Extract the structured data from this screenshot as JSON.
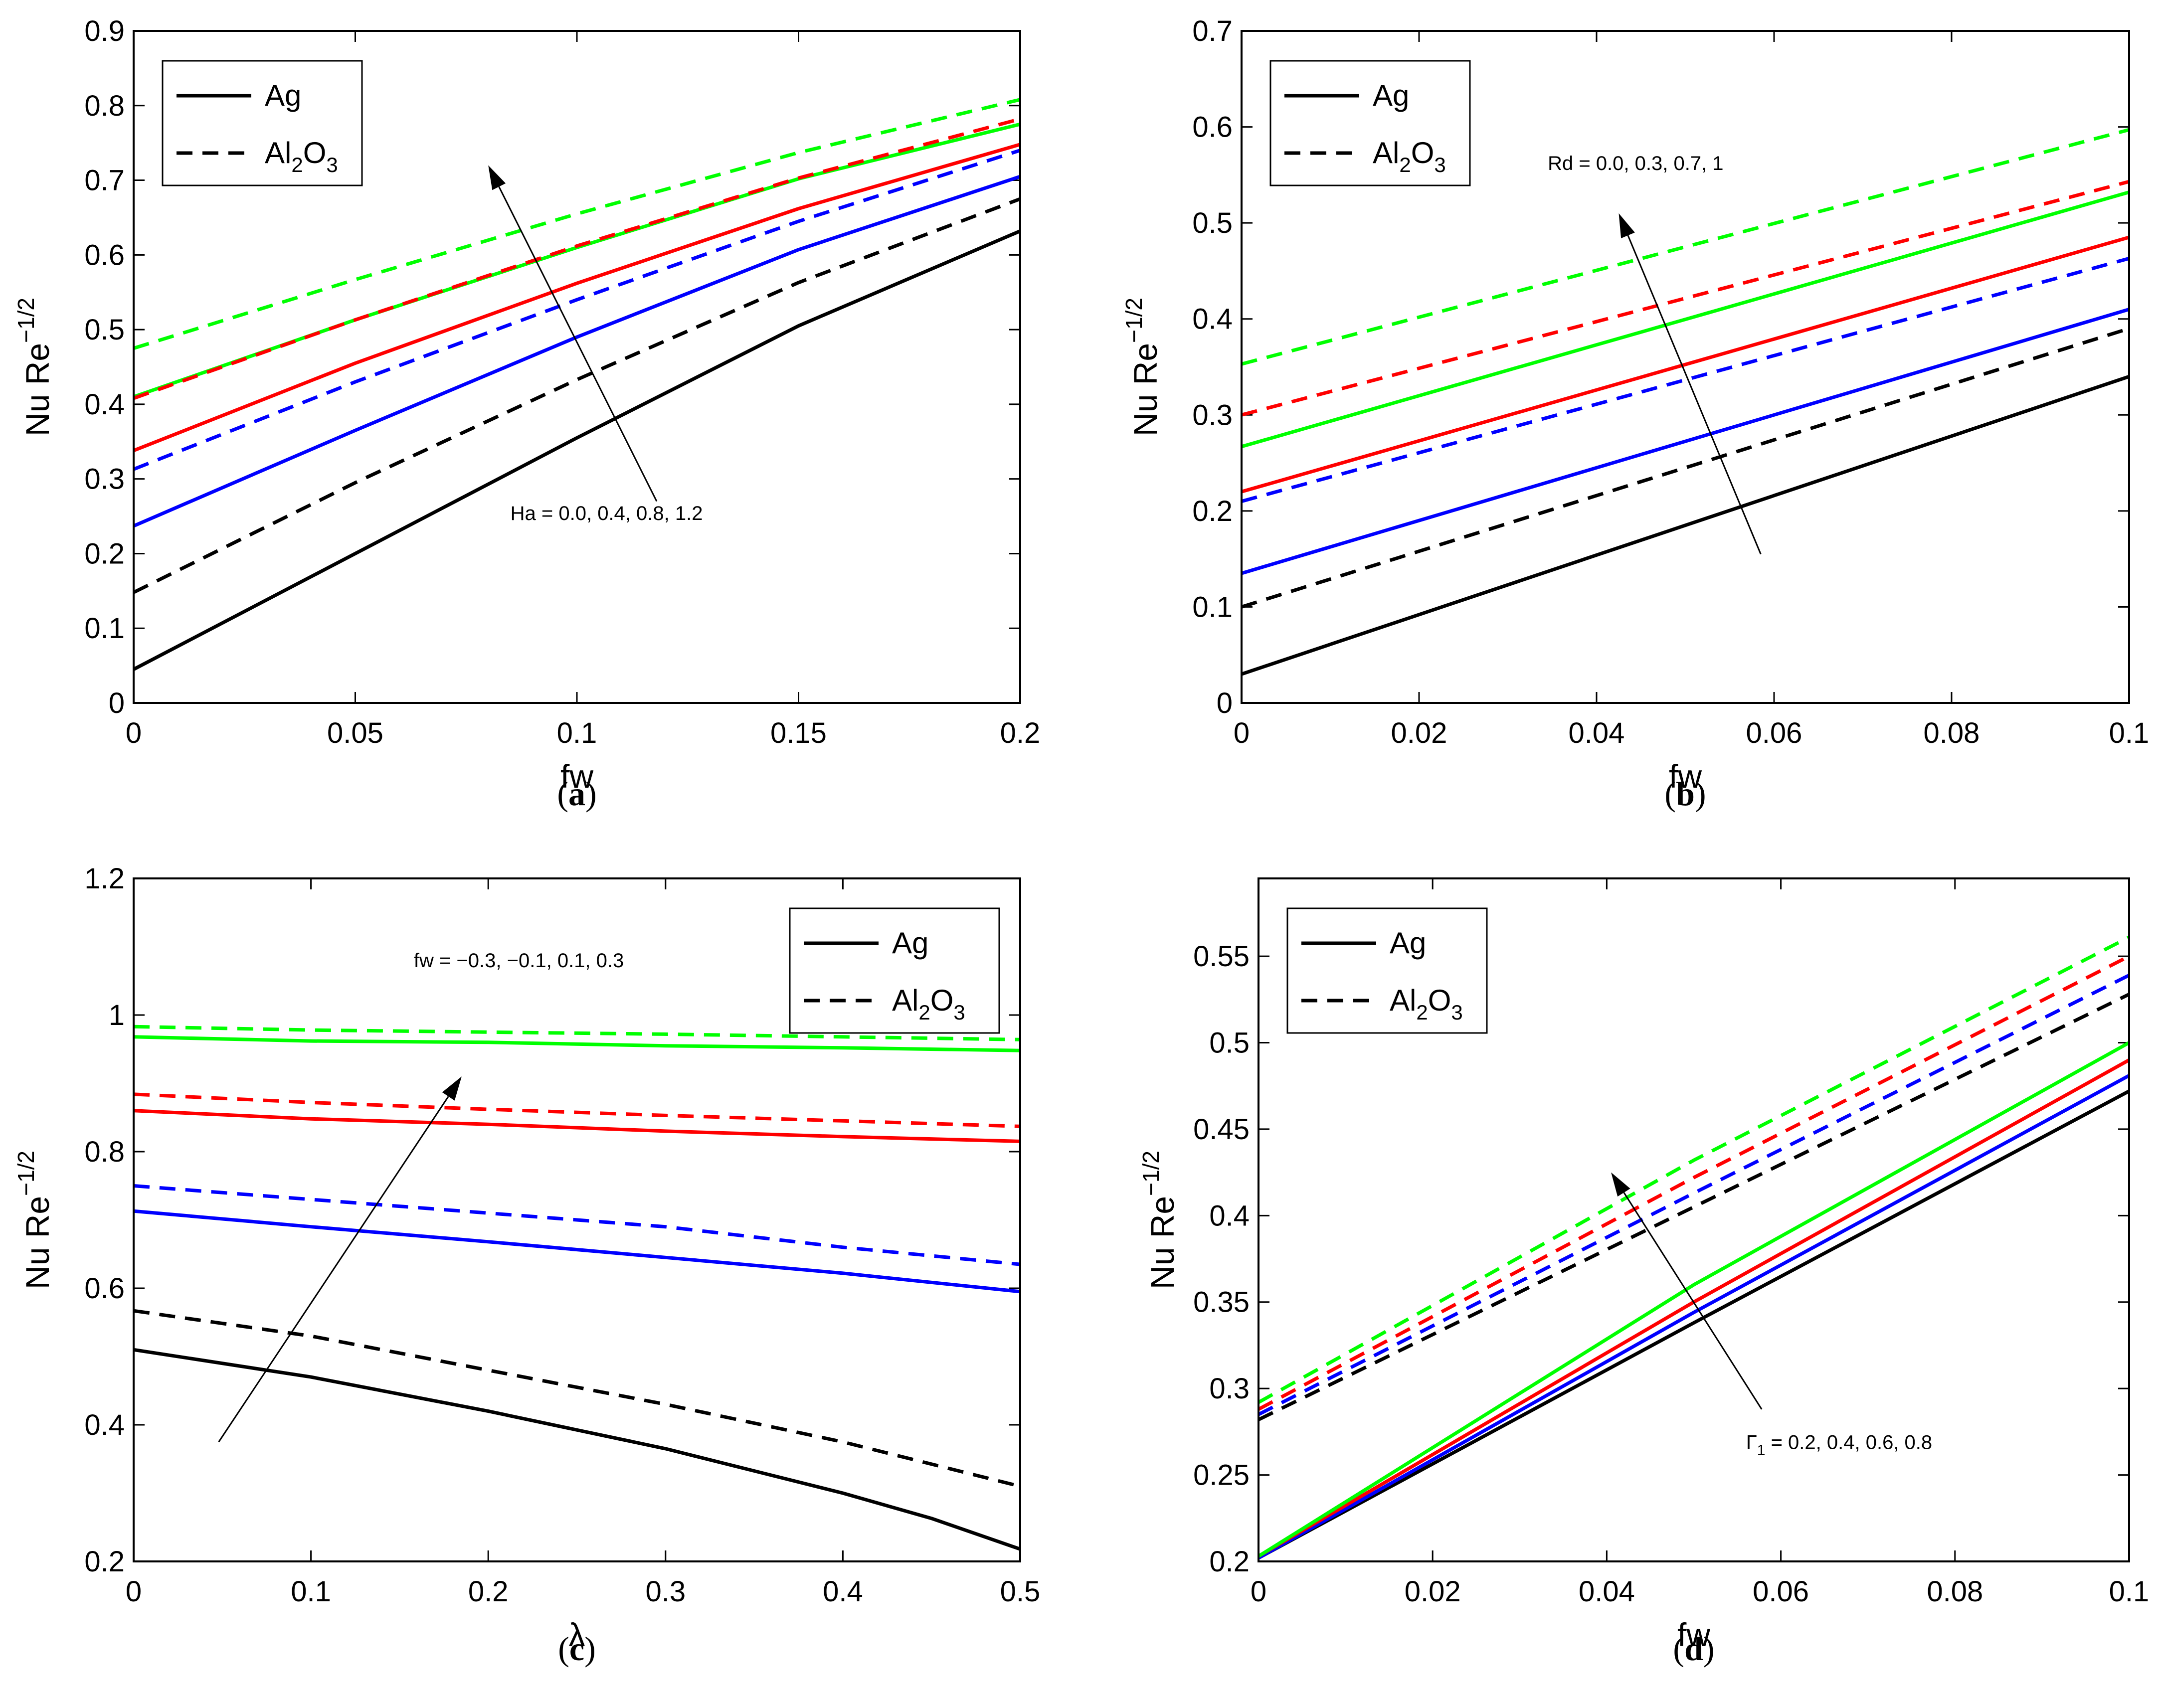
{
  "chart_data": [
    {
      "type": "line",
      "panel": "a",
      "caption_letter": "a",
      "xlabel": "fw",
      "ylabel_base": "Nu Re",
      "ylabel_exp": "−1/2",
      "xlim": [
        0,
        0.2
      ],
      "ylim": [
        0,
        0.9
      ],
      "xticks": [
        0,
        0.05,
        0.1,
        0.15,
        0.2
      ],
      "xtick_labels": [
        "0",
        "0.05",
        "0.1",
        "0.15",
        "0.2"
      ],
      "yticks": [
        0,
        0.1,
        0.2,
        0.3,
        0.4,
        0.5,
        0.6,
        0.7,
        0.8,
        0.9
      ],
      "ytick_labels": [
        "0",
        "0.1",
        "0.2",
        "0.3",
        "0.4",
        "0.5",
        "0.6",
        "0.7",
        "0.8",
        "0.9"
      ],
      "legend": [
        {
          "label": "Ag",
          "sub": "",
          "style": "solid"
        },
        {
          "label": "Al",
          "sub": "2",
          "label2": "O",
          "sub2": "3",
          "style": "dashed"
        }
      ],
      "legend_position": "top-left",
      "annotation": {
        "text": "Ha = 0.0, 0.4, 0.8, 1.2",
        "arrow_from": [
          0.118,
          0.27
        ],
        "arrow_to": [
          0.08,
          0.72
        ],
        "text_pos": [
          0.085,
          0.245
        ]
      },
      "series": [
        {
          "name": "Ag Ha=0.0",
          "color": "#000000",
          "style": "solid",
          "x": [
            0,
            0.05,
            0.1,
            0.15,
            0.2
          ],
          "y": [
            0.045,
            0.2,
            0.355,
            0.505,
            0.632
          ]
        },
        {
          "name": "Ag Ha=0.4",
          "color": "#0000ff",
          "style": "solid",
          "x": [
            0,
            0.05,
            0.1,
            0.15,
            0.2
          ],
          "y": [
            0.237,
            0.365,
            0.49,
            0.607,
            0.705
          ]
        },
        {
          "name": "Ag Ha=0.8",
          "color": "#ff0000",
          "style": "solid",
          "x": [
            0,
            0.05,
            0.1,
            0.15,
            0.2
          ],
          "y": [
            0.338,
            0.455,
            0.562,
            0.662,
            0.748
          ]
        },
        {
          "name": "Ag Ha=1.2",
          "color": "#00ff00",
          "style": "solid",
          "x": [
            0,
            0.05,
            0.1,
            0.15,
            0.2
          ],
          "y": [
            0.41,
            0.513,
            0.61,
            0.702,
            0.775
          ]
        },
        {
          "name": "Al2O3 Ha=0.0",
          "color": "#000000",
          "style": "dashed",
          "x": [
            0,
            0.05,
            0.1,
            0.15,
            0.2
          ],
          "y": [
            0.148,
            0.295,
            0.433,
            0.563,
            0.675
          ]
        },
        {
          "name": "Al2O3 Ha=0.4",
          "color": "#0000ff",
          "style": "dashed",
          "x": [
            0,
            0.05,
            0.1,
            0.15,
            0.2
          ],
          "y": [
            0.313,
            0.43,
            0.54,
            0.645,
            0.74
          ]
        },
        {
          "name": "Al2O3 Ha=0.8",
          "color": "#ff0000",
          "style": "dashed",
          "x": [
            0,
            0.05,
            0.1,
            0.15,
            0.2
          ],
          "y": [
            0.408,
            0.513,
            0.612,
            0.703,
            0.782
          ]
        },
        {
          "name": "Al2O3 Ha=1.2",
          "color": "#00ff00",
          "style": "dashed",
          "x": [
            0,
            0.05,
            0.1,
            0.15,
            0.2
          ],
          "y": [
            0.475,
            0.567,
            0.655,
            0.737,
            0.808
          ]
        }
      ]
    },
    {
      "type": "line",
      "panel": "b",
      "caption_letter": "b",
      "xlabel": "fw",
      "ylabel_base": "Nu Re",
      "ylabel_exp": "−1/2",
      "xlim": [
        0,
        0.1
      ],
      "ylim": [
        0,
        0.7
      ],
      "xticks": [
        0,
        0.02,
        0.04,
        0.06,
        0.08,
        0.1
      ],
      "xtick_labels": [
        "0",
        "0.02",
        "0.04",
        "0.06",
        "0.08",
        "0.1"
      ],
      "yticks": [
        0,
        0.1,
        0.2,
        0.3,
        0.4,
        0.5,
        0.6,
        0.7
      ],
      "ytick_labels": [
        "0",
        "0.1",
        "0.2",
        "0.3",
        "0.4",
        "0.5",
        "0.6",
        "0.7"
      ],
      "legend": [
        {
          "label": "Ag",
          "sub": "",
          "style": "solid"
        },
        {
          "label": "Al",
          "sub": "2",
          "label2": "O",
          "sub2": "3",
          "style": "dashed"
        }
      ],
      "legend_position": "top-left",
      "annotation": {
        "text": "Rd = 0.0, 0.3, 0.7, 1",
        "arrow_from": [
          0.0585,
          0.155
        ],
        "arrow_to": [
          0.0425,
          0.51
        ],
        "text_pos": [
          0.0345,
          0.555
        ]
      },
      "series": [
        {
          "name": "Ag Rd=0.0",
          "color": "#000000",
          "style": "solid",
          "x": [
            0,
            0.1
          ],
          "y": [
            0.03,
            0.34
          ]
        },
        {
          "name": "Ag Rd=0.3",
          "color": "#0000ff",
          "style": "solid",
          "x": [
            0,
            0.1
          ],
          "y": [
            0.135,
            0.41
          ]
        },
        {
          "name": "Ag Rd=0.7",
          "color": "#ff0000",
          "style": "solid",
          "x": [
            0,
            0.1
          ],
          "y": [
            0.22,
            0.485
          ]
        },
        {
          "name": "Ag Rd=1",
          "color": "#00ff00",
          "style": "solid",
          "x": [
            0,
            0.1
          ],
          "y": [
            0.267,
            0.532
          ]
        },
        {
          "name": "Al2O3 Rd=0.0",
          "color": "#000000",
          "style": "dashed",
          "x": [
            0,
            0.1
          ],
          "y": [
            0.1,
            0.39
          ]
        },
        {
          "name": "Al2O3 Rd=0.3",
          "color": "#0000ff",
          "style": "dashed",
          "x": [
            0,
            0.1
          ],
          "y": [
            0.21,
            0.463
          ]
        },
        {
          "name": "Al2O3 Rd=0.7",
          "color": "#ff0000",
          "style": "dashed",
          "x": [
            0,
            0.1
          ],
          "y": [
            0.3,
            0.543
          ]
        },
        {
          "name": "Al2O3 Rd=1",
          "color": "#00ff00",
          "style": "dashed",
          "x": [
            0,
            0.1
          ],
          "y": [
            0.353,
            0.597
          ]
        }
      ]
    },
    {
      "type": "line",
      "panel": "c",
      "caption_letter": "c",
      "xlabel": "λ",
      "ylabel_base": "Nu Re",
      "ylabel_exp": "−1/2",
      "xlim": [
        0,
        0.5
      ],
      "ylim": [
        0.2,
        1.2
      ],
      "xticks": [
        0,
        0.1,
        0.2,
        0.3,
        0.4,
        0.5
      ],
      "xtick_labels": [
        "0",
        "0.1",
        "0.2",
        "0.3",
        "0.4",
        "0.5"
      ],
      "yticks": [
        0.2,
        0.4,
        0.6,
        0.8,
        1.0,
        1.2
      ],
      "ytick_labels": [
        "0.2",
        "0.4",
        "0.6",
        "0.8",
        "1",
        "1.2"
      ],
      "legend": [
        {
          "label": "Ag",
          "sub": "",
          "style": "solid"
        },
        {
          "label": "Al",
          "sub": "2",
          "label2": "O",
          "sub2": "3",
          "style": "dashed"
        }
      ],
      "legend_position": "top-right",
      "annotation": {
        "text": "fw = −0.3, −0.1, 0.1, 0.3",
        "arrow_from": [
          0.048,
          0.375
        ],
        "arrow_to": [
          0.185,
          0.91
        ],
        "text_pos": [
          0.158,
          1.07
        ]
      },
      "series": [
        {
          "name": "Ag fw=-0.3",
          "color": "#000000",
          "style": "solid",
          "x": [
            0,
            0.1,
            0.2,
            0.3,
            0.4,
            0.45,
            0.5
          ],
          "y": [
            0.51,
            0.47,
            0.42,
            0.365,
            0.3,
            0.263,
            0.218
          ]
        },
        {
          "name": "Ag fw=-0.1",
          "color": "#0000ff",
          "style": "solid",
          "x": [
            0,
            0.1,
            0.2,
            0.3,
            0.4,
            0.5
          ],
          "y": [
            0.713,
            0.69,
            0.668,
            0.645,
            0.622,
            0.595
          ]
        },
        {
          "name": "Ag fw=0.1",
          "color": "#ff0000",
          "style": "solid",
          "x": [
            0,
            0.1,
            0.2,
            0.3,
            0.4,
            0.5
          ],
          "y": [
            0.86,
            0.848,
            0.84,
            0.83,
            0.822,
            0.815
          ]
        },
        {
          "name": "Ag fw=0.3",
          "color": "#00ff00",
          "style": "solid",
          "x": [
            0,
            0.1,
            0.2,
            0.3,
            0.4,
            0.5
          ],
          "y": [
            0.968,
            0.962,
            0.96,
            0.955,
            0.952,
            0.948
          ]
        },
        {
          "name": "Al2O3 fw=-0.3",
          "color": "#000000",
          "style": "dashed",
          "x": [
            0,
            0.1,
            0.2,
            0.3,
            0.4,
            0.5
          ],
          "y": [
            0.567,
            0.53,
            0.48,
            0.43,
            0.375,
            0.31
          ]
        },
        {
          "name": "Al2O3 fw=-0.1",
          "color": "#0000ff",
          "style": "dashed",
          "x": [
            0,
            0.1,
            0.2,
            0.3,
            0.4,
            0.5
          ],
          "y": [
            0.75,
            0.73,
            0.71,
            0.69,
            0.66,
            0.635
          ]
        },
        {
          "name": "Al2O3 fw=0.1",
          "color": "#ff0000",
          "style": "dashed",
          "x": [
            0,
            0.1,
            0.2,
            0.3,
            0.4,
            0.5
          ],
          "y": [
            0.884,
            0.872,
            0.862,
            0.853,
            0.845,
            0.837
          ]
        },
        {
          "name": "Al2O3 fw=0.3",
          "color": "#00ff00",
          "style": "dashed",
          "x": [
            0,
            0.1,
            0.2,
            0.3,
            0.4,
            0.5
          ],
          "y": [
            0.983,
            0.978,
            0.975,
            0.972,
            0.968,
            0.964
          ]
        }
      ]
    },
    {
      "type": "line",
      "panel": "d",
      "caption_letter": "d",
      "xlabel": "fw",
      "ylabel_base": "Nu Re",
      "ylabel_exp": "−1/2",
      "xlim": [
        0,
        0.1
      ],
      "ylim": [
        0.2,
        0.595
      ],
      "xticks": [
        0,
        0.02,
        0.04,
        0.06,
        0.08,
        0.1
      ],
      "xtick_labels": [
        "0",
        "0.02",
        "0.04",
        "0.06",
        "0.08",
        "0.1"
      ],
      "yticks": [
        0.2,
        0.25,
        0.3,
        0.35,
        0.4,
        0.45,
        0.5,
        0.55
      ],
      "ytick_labels": [
        "0.2",
        "0.25",
        "0.3",
        "0.35",
        "0.4",
        "0.45",
        "0.5",
        "0.55"
      ],
      "legend": [
        {
          "label": "Ag",
          "sub": "",
          "style": "solid"
        },
        {
          "label": "Al",
          "sub": "2",
          "label2": "O",
          "sub2": "3",
          "style": "dashed"
        }
      ],
      "legend_position": "top-left",
      "annotation": {
        "text": "Γ",
        "text_sub": "1",
        "text_rest": " = 0.2, 0.4, 0.6, 0.8",
        "arrow_from": [
          0.0578,
          0.288
        ],
        "arrow_to": [
          0.0405,
          0.425
        ],
        "text_pos": [
          0.056,
          0.265
        ]
      },
      "series": [
        {
          "name": "Ag Γ1=0.2",
          "color": "#000000",
          "style": "solid",
          "x": [
            0,
            0.05,
            0.1
          ],
          "y": [
            0.202,
            0.338,
            0.472
          ]
        },
        {
          "name": "Ag Γ1=0.4",
          "color": "#0000ff",
          "style": "solid",
          "x": [
            0,
            0.05,
            0.1
          ],
          "y": [
            0.202,
            0.344,
            0.481
          ]
        },
        {
          "name": "Ag Γ1=0.6",
          "color": "#ff0000",
          "style": "solid",
          "x": [
            0,
            0.05,
            0.1
          ],
          "y": [
            0.203,
            0.35,
            0.49
          ]
        },
        {
          "name": "Ag Γ1=0.8",
          "color": "#00ff00",
          "style": "solid",
          "x": [
            0,
            0.05,
            0.1
          ],
          "y": [
            0.203,
            0.36,
            0.5
          ]
        },
        {
          "name": "Al2O3 Γ1=0.2",
          "color": "#000000",
          "style": "dashed",
          "x": [
            0,
            0.05,
            0.1
          ],
          "y": [
            0.282,
            0.405,
            0.528
          ]
        },
        {
          "name": "Al2O3 Γ1=0.4",
          "color": "#0000ff",
          "style": "dashed",
          "x": [
            0,
            0.05,
            0.1
          ],
          "y": [
            0.285,
            0.413,
            0.539
          ]
        },
        {
          "name": "Al2O3 Γ1=0.6",
          "color": "#ff0000",
          "style": "dashed",
          "x": [
            0,
            0.05,
            0.1
          ],
          "y": [
            0.288,
            0.422,
            0.55
          ]
        },
        {
          "name": "Al2O3 Γ1=0.8",
          "color": "#00ff00",
          "style": "dashed",
          "x": [
            0,
            0.05,
            0.1
          ],
          "y": [
            0.292,
            0.432,
            0.561
          ]
        }
      ]
    }
  ]
}
